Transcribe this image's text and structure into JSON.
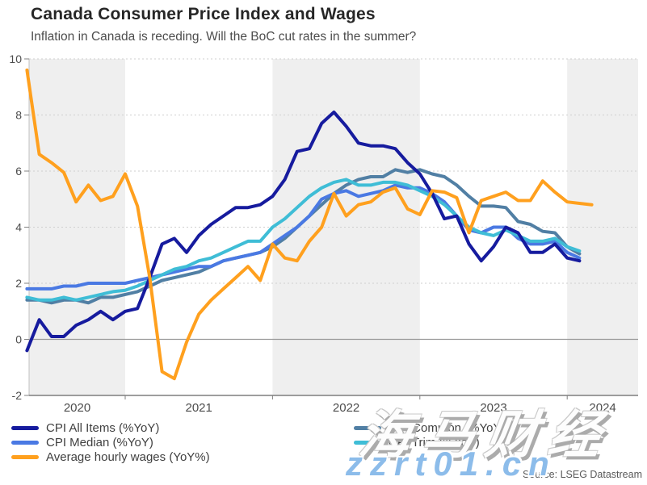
{
  "header": {
    "title": "Canada Consumer Price Index and Wages",
    "subtitle": "Inflation in Canada is receding. Will the BoC cut rates in the summer?"
  },
  "source": "Source: LSEG Datastream",
  "watermark": {
    "brand": "海马财经",
    "site": "zzrt01.cn"
  },
  "chart_data": {
    "type": "line",
    "title": "Canada Consumer Price Index and Wages",
    "xlabel": "",
    "ylabel": "%YoY",
    "ylim": [
      -2,
      10
    ],
    "y_ticks": [
      -2,
      0,
      2,
      4,
      6,
      8,
      10
    ],
    "grid": "dotted horizontal gridlines, solid zero line, alternating gray year bands",
    "legend_position": "bottom",
    "x_tick_labels": [
      "2020",
      "2021",
      "2022",
      "2023",
      "2024"
    ],
    "x_months": [
      "2020-05",
      "2020-06",
      "2020-07",
      "2020-08",
      "2020-09",
      "2020-10",
      "2020-11",
      "2020-12",
      "2021-01",
      "2021-02",
      "2021-03",
      "2021-04",
      "2021-05",
      "2021-06",
      "2021-07",
      "2021-08",
      "2021-09",
      "2021-10",
      "2021-11",
      "2021-12",
      "2022-01",
      "2022-02",
      "2022-03",
      "2022-04",
      "2022-05",
      "2022-06",
      "2022-07",
      "2022-08",
      "2022-09",
      "2022-10",
      "2022-11",
      "2022-12",
      "2023-01",
      "2023-02",
      "2023-03",
      "2023-04",
      "2023-05",
      "2023-06",
      "2023-07",
      "2023-08",
      "2023-09",
      "2023-10",
      "2023-11",
      "2023-12",
      "2024-01",
      "2024-02",
      "2024-03"
    ],
    "series": [
      {
        "name": "CPI All Items (%YoY)",
        "color": "#161b9e",
        "values": [
          -0.4,
          0.7,
          0.1,
          0.1,
          0.5,
          0.7,
          1.0,
          0.7,
          1.0,
          1.1,
          2.2,
          3.4,
          3.6,
          3.1,
          3.7,
          4.1,
          4.4,
          4.7,
          4.7,
          4.8,
          5.1,
          5.7,
          6.7,
          6.8,
          7.7,
          8.1,
          7.6,
          7.0,
          6.9,
          6.9,
          6.8,
          6.3,
          5.9,
          5.2,
          4.3,
          4.4,
          3.4,
          2.8,
          3.3,
          4.0,
          3.8,
          3.1,
          3.1,
          3.4,
          2.9,
          2.8
        ]
      },
      {
        "name": "CPI Median (%YoY)",
        "color": "#4a79e3",
        "values": [
          1.8,
          1.8,
          1.8,
          1.9,
          1.9,
          2.0,
          2.0,
          2.0,
          2.0,
          2.1,
          2.2,
          2.3,
          2.4,
          2.5,
          2.6,
          2.6,
          2.8,
          2.9,
          3.0,
          3.1,
          3.4,
          3.7,
          4.0,
          4.4,
          5.0,
          5.2,
          5.3,
          5.1,
          5.2,
          5.3,
          5.5,
          5.4,
          5.4,
          5.2,
          4.9,
          4.4,
          3.9,
          3.8,
          4.0,
          4.0,
          3.6,
          3.4,
          3.4,
          3.5,
          3.1,
          2.9
        ]
      },
      {
        "name": "Average hourly wages (YoY%)",
        "color": "#ffa01e",
        "values": [
          9.6,
          6.6,
          6.3,
          5.95,
          4.9,
          5.5,
          4.95,
          5.1,
          5.9,
          4.75,
          2.2,
          -1.15,
          -1.4,
          -0.1,
          0.9,
          1.4,
          1.8,
          2.2,
          2.6,
          2.1,
          3.4,
          2.9,
          2.8,
          3.5,
          4.0,
          5.2,
          4.4,
          4.8,
          4.9,
          5.25,
          5.4,
          4.65,
          4.45,
          5.3,
          5.25,
          5.05,
          3.8,
          4.95,
          5.1,
          5.25,
          4.95,
          4.95,
          5.65,
          5.25,
          4.9,
          4.85,
          4.8
        ]
      },
      {
        "name": "CPI Common (%YoY)",
        "color": "#517fa4",
        "values": [
          1.4,
          1.4,
          1.3,
          1.4,
          1.4,
          1.3,
          1.5,
          1.5,
          1.6,
          1.7,
          1.9,
          2.1,
          2.2,
          2.3,
          2.4,
          2.6,
          2.8,
          2.9,
          3.0,
          3.1,
          3.3,
          3.6,
          4.0,
          4.4,
          4.8,
          5.2,
          5.5,
          5.7,
          5.8,
          5.8,
          6.05,
          5.95,
          6.05,
          5.9,
          5.8,
          5.5,
          5.1,
          4.75,
          4.75,
          4.7,
          4.2,
          4.1,
          3.85,
          3.8,
          3.3,
          3.05
        ]
      },
      {
        "name": "CPI Trim (%YoY)",
        "color": "#3fbdd6",
        "values": [
          1.5,
          1.4,
          1.4,
          1.5,
          1.4,
          1.5,
          1.6,
          1.7,
          1.75,
          1.9,
          2.1,
          2.3,
          2.5,
          2.6,
          2.8,
          2.9,
          3.1,
          3.3,
          3.5,
          3.5,
          4.0,
          4.3,
          4.7,
          5.1,
          5.4,
          5.6,
          5.7,
          5.5,
          5.5,
          5.6,
          5.6,
          5.5,
          5.3,
          5.1,
          4.8,
          4.4,
          4.0,
          3.8,
          3.7,
          3.9,
          3.7,
          3.5,
          3.5,
          3.6,
          3.3,
          3.15
        ]
      }
    ]
  }
}
